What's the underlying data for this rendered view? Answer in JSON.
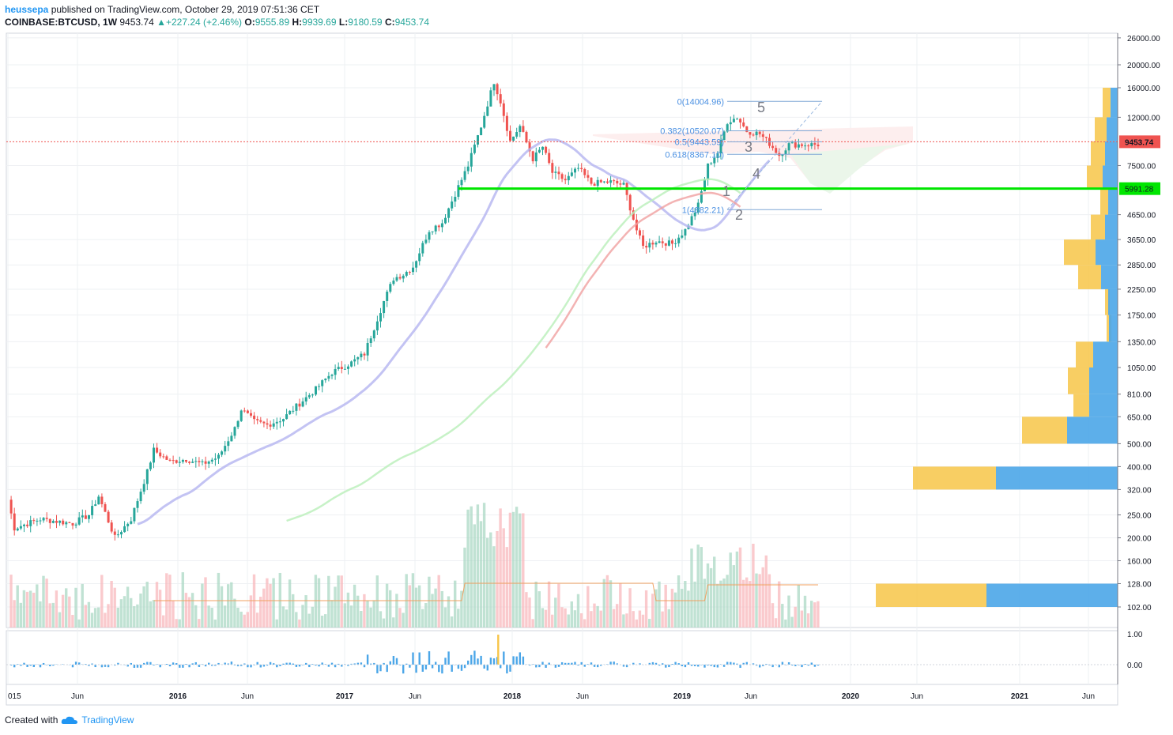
{
  "header": {
    "author": "heussepa",
    "published_text": "published on TradingView.com, October 29, 2019 07:51:36 CET",
    "symbol": "COINBASE:BTCUSD",
    "interval": "1W",
    "last": "9453.74",
    "change": "+227.24 (+2.46%)",
    "open_label": "O:",
    "open": "9555.89",
    "high_label": "H:",
    "high": "9939.69",
    "low_label": "L:",
    "low": "9180.59",
    "close_label": "C:",
    "close": "9453.74"
  },
  "footer": {
    "created_with": "Created with",
    "brand": "TradingView"
  },
  "chart_data": {
    "type": "candlestick",
    "scale": "log",
    "y_ticks": [
      "26000.00",
      "20000.00",
      "16000.00",
      "12000.00",
      "9453.74",
      "7500.00",
      "5991.28",
      "4650.00",
      "3650.00",
      "2850.00",
      "2250.00",
      "1750.00",
      "1350.00",
      "1050.00",
      "810.00",
      "650.00",
      "500.00",
      "400.00",
      "320.00",
      "250.00",
      "200.00",
      "160.00",
      "128.00",
      "102.00"
    ],
    "y_tick_values": [
      26000,
      20000,
      16000,
      12000,
      7500,
      4650,
      3650,
      2850,
      2250,
      1750,
      1350,
      1050,
      810,
      650,
      500,
      400,
      320,
      250,
      200,
      160,
      128,
      102
    ],
    "x_ticks": [
      "015",
      "Jun",
      "2016",
      "Jun",
      "2017",
      "Jun",
      "2018",
      "Jun",
      "2019",
      "Jun",
      "2020",
      "Jun",
      "2021",
      "Jun"
    ],
    "last_price": {
      "value": 9453.74,
      "label": "9453.74",
      "color": "#ef5350"
    },
    "support_line": {
      "value": 5991.28,
      "label": "5991.28",
      "color": "#00e600"
    },
    "fib_levels": [
      {
        "label": "0(14004.96)",
        "value": 14004.96
      },
      {
        "label": "0.382(10520.07)",
        "value": 10520.07
      },
      {
        "label": "0.5(9443.59)",
        "value": 9443.59
      },
      {
        "label": "0.618(8367.10)",
        "value": 8367.1
      },
      {
        "label": "1(4882.21)",
        "value": 4882.21
      }
    ],
    "wave_labels": [
      "1",
      "2",
      "3",
      "4",
      "5"
    ],
    "oscillator_ticks": [
      "1.00",
      "0.00"
    ],
    "colors": {
      "up": "#26a69a",
      "down": "#ef5350",
      "volume_profile_up": "#f7c548",
      "volume_profile_down": "#4ba6e8",
      "ichimoku_cloud_up": "#c8e6c9",
      "ichimoku_cloud_down": "#ffcdd2",
      "kijun": "#b4b4f0"
    }
  }
}
